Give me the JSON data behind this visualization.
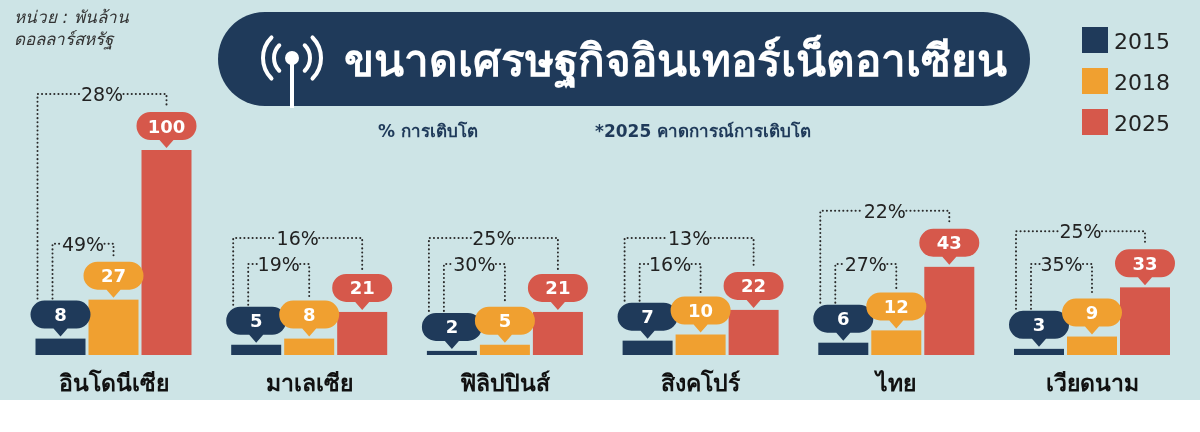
{
  "chart_data": {
    "type": "bar",
    "title": "ขนาดเศรษฐกิจอินเทอร์เน็ตอาเซียน",
    "subtitle": "หน่วย : พันล้านดอลลาร์สหรัฐ",
    "categories": [
      "อินโดนีเซีย",
      "มาเลเซีย",
      "ฟิลิปปินส์",
      "สิงคโปร์",
      "ไทย",
      "เวียดนาม"
    ],
    "series": [
      {
        "name": "2015",
        "color": "#1f3a5a",
        "values": [
          8,
          5,
          2,
          7,
          6,
          3
        ]
      },
      {
        "name": "2018",
        "color": "#f0a030",
        "values": [
          27,
          8,
          5,
          10,
          12,
          9
        ]
      },
      {
        "name": "2025",
        "color": "#d6584b",
        "values": [
          100,
          21,
          21,
          22,
          43,
          33
        ]
      }
    ],
    "data_labels": true,
    "legend": "top right",
    "annotations": [
      "% การเติบโต",
      "*2025 คาดการณ์การเติบโต",
      "49%",
      "28%",
      "19%",
      "16%",
      "30%",
      "25%",
      "16%",
      "13%",
      "27%",
      "22%",
      "35%",
      "25%"
    ]
  }
}
